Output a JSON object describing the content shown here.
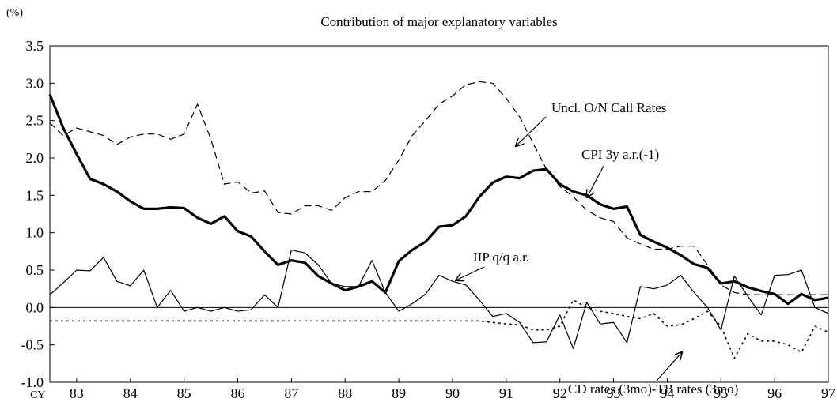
{
  "chart_data": {
    "type": "line",
    "title": "Contribution of major explanatory variables",
    "y_unit": "(%)",
    "x_label": "CY",
    "x": [
      82.5,
      82.75,
      83,
      83.25,
      83.5,
      83.75,
      84,
      84.25,
      84.5,
      84.75,
      85,
      85.25,
      85.5,
      85.75,
      86,
      86.25,
      86.5,
      86.75,
      87,
      87.25,
      87.5,
      87.75,
      88,
      88.25,
      88.5,
      88.75,
      89,
      89.25,
      89.5,
      89.75,
      90,
      90.25,
      90.5,
      90.75,
      91,
      91.25,
      91.5,
      91.75,
      92,
      92.25,
      92.5,
      92.75,
      93,
      93.25,
      93.5,
      93.75,
      94,
      94.25,
      94.5,
      94.75,
      95,
      95.25,
      95.5,
      95.75,
      96,
      96.25,
      96.5,
      96.75,
      97
    ],
    "xlim": [
      82.5,
      97
    ],
    "xticks": [
      83,
      84,
      85,
      86,
      87,
      88,
      89,
      90,
      91,
      92,
      93,
      94,
      95,
      96,
      97
    ],
    "ylim": [
      -1,
      3.5
    ],
    "yticks": [
      {
        "value": -1,
        "label": "-1.0"
      },
      {
        "value": -0.5,
        "label": "-0.5"
      },
      {
        "value": 0,
        "label": "0.0"
      },
      {
        "value": 0.5,
        "label": "0.5"
      },
      {
        "value": 1,
        "label": "1.0"
      },
      {
        "value": 1.5,
        "label": "1.5"
      },
      {
        "value": 2,
        "label": "2.0"
      },
      {
        "value": 2.5,
        "label": "2.5"
      },
      {
        "value": 3,
        "label": "3.0"
      },
      {
        "value": 3.5,
        "label": "3.5"
      }
    ],
    "series": [
      {
        "name": "Uncl. O/N Call Rates",
        "color": "#000000",
        "style": "dashed",
        "width": 1.2,
        "values": [
          2.47,
          2.3,
          2.4,
          2.35,
          2.3,
          2.18,
          2.28,
          2.32,
          2.32,
          2.25,
          2.32,
          2.72,
          2.25,
          1.65,
          1.68,
          1.53,
          1.56,
          1.27,
          1.25,
          1.36,
          1.36,
          1.3,
          1.47,
          1.55,
          1.55,
          1.7,
          1.97,
          2.3,
          2.5,
          2.72,
          2.83,
          2.98,
          3.02,
          3.0,
          2.8,
          2.55,
          2.2,
          1.85,
          1.62,
          1.48,
          1.3,
          1.2,
          1.15,
          0.93,
          0.85,
          0.78,
          0.78,
          0.82,
          0.82,
          0.57,
          0.3,
          0.2,
          0.17,
          0.17,
          0.17,
          0.17,
          0.17,
          0.17,
          0.17
        ]
      },
      {
        "name": "CPI 3y a.r.(-1)",
        "color": "#000000",
        "style": "solid",
        "width": 3.2,
        "values": [
          2.85,
          2.4,
          2.05,
          1.72,
          1.65,
          1.55,
          1.42,
          1.32,
          1.32,
          1.34,
          1.33,
          1.2,
          1.12,
          1.22,
          1.02,
          0.95,
          0.75,
          0.57,
          0.63,
          0.6,
          0.42,
          0.32,
          0.23,
          0.28,
          0.35,
          0.2,
          0.62,
          0.77,
          0.88,
          1.08,
          1.1,
          1.22,
          1.48,
          1.67,
          1.75,
          1.73,
          1.83,
          1.85,
          1.65,
          1.55,
          1.5,
          1.38,
          1.32,
          1.35,
          0.97,
          0.88,
          0.8,
          0.7,
          0.58,
          0.53,
          0.32,
          0.35,
          0.27,
          0.22,
          0.18,
          0.05,
          0.18,
          0.1,
          0.13
        ]
      },
      {
        "name": "IIP q/q a.r.",
        "color": "#000000",
        "style": "solid",
        "width": 1.2,
        "values": [
          0.17,
          0.33,
          0.5,
          0.49,
          0.67,
          0.35,
          0.29,
          0.5,
          0.0,
          0.23,
          -0.05,
          0.0,
          -0.05,
          0.0,
          -0.05,
          -0.03,
          0.17,
          0.0,
          0.77,
          0.73,
          0.57,
          0.32,
          0.28,
          0.28,
          0.63,
          0.2,
          -0.05,
          0.05,
          0.18,
          0.43,
          0.35,
          0.3,
          0.1,
          -0.12,
          -0.08,
          -0.2,
          -0.47,
          -0.46,
          -0.1,
          -0.55,
          0.07,
          -0.22,
          -0.2,
          -0.47,
          0.28,
          0.25,
          0.3,
          0.43,
          0.2,
          0.0,
          -0.3,
          0.42,
          0.15,
          -0.1,
          0.43,
          0.44,
          0.5,
          0.0,
          -0.08
        ]
      },
      {
        "name": "CD rates (3mo)-TB rates (3mo)",
        "color": "#000000",
        "style": "dotted",
        "width": 1.5,
        "values": [
          -0.18,
          -0.18,
          -0.18,
          -0.18,
          -0.18,
          -0.18,
          -0.18,
          -0.18,
          -0.18,
          -0.18,
          -0.18,
          -0.18,
          -0.18,
          -0.18,
          -0.18,
          -0.18,
          -0.18,
          -0.18,
          -0.18,
          -0.18,
          -0.18,
          -0.18,
          -0.18,
          -0.18,
          -0.18,
          -0.18,
          -0.18,
          -0.18,
          -0.18,
          -0.18,
          -0.18,
          -0.18,
          -0.18,
          -0.2,
          -0.22,
          -0.23,
          -0.3,
          -0.3,
          -0.25,
          0.1,
          0.0,
          -0.05,
          -0.08,
          -0.12,
          -0.15,
          -0.08,
          -0.25,
          -0.23,
          -0.15,
          -0.05,
          -0.25,
          -0.68,
          -0.35,
          -0.45,
          -0.45,
          -0.5,
          -0.6,
          -0.25,
          -0.33
        ]
      }
    ]
  }
}
